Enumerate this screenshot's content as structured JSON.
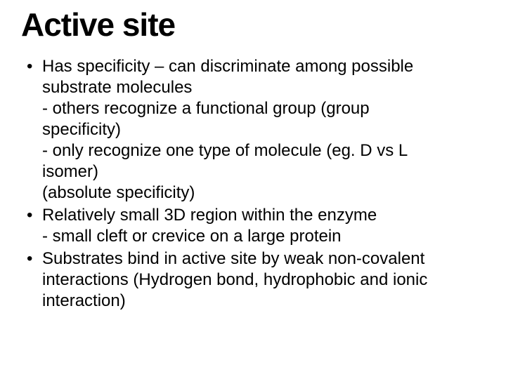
{
  "title": "Active site",
  "title_fontsize": 46,
  "body_fontsize": 24,
  "body_lineheight": 30,
  "text_color": "#000000",
  "background_color": "#ffffff",
  "bullets": [
    {
      "lines": [
        "Has specificity – can discriminate among possible",
        "substrate molecules",
        "- others recognize a functional group (group",
        "specificity)",
        "- only recognize one type of molecule (eg. D vs L",
        "isomer)",
        "   (absolute specificity)"
      ]
    },
    {
      "lines": [
        "Relatively small 3D region within the enzyme",
        "- small cleft or crevice on a large protein"
      ]
    },
    {
      "lines": [
        "Substrates bind in active site by weak non-covalent",
        "interactions (Hydrogen bond, hydrophobic and ionic",
        "interaction)"
      ]
    }
  ]
}
